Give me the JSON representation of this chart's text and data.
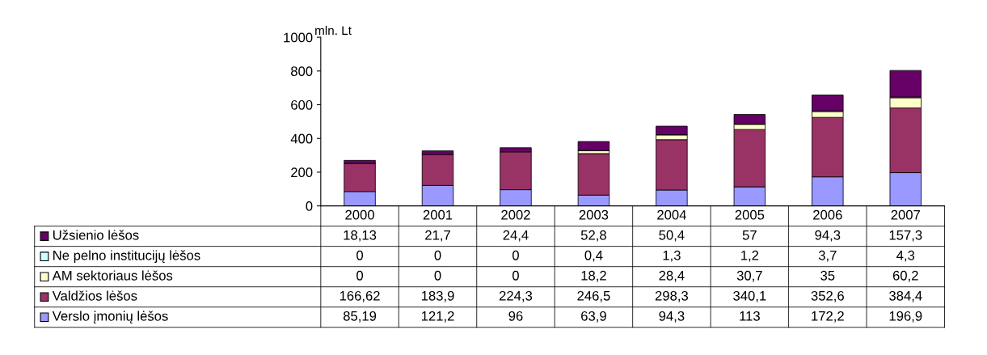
{
  "chart_data": {
    "type": "bar",
    "stacked": true,
    "ylabel": "mln. Lt",
    "categories": [
      "2000",
      "2001",
      "2002",
      "2003",
      "2004",
      "2005",
      "2006",
      "2007"
    ],
    "ylim": [
      0,
      1000
    ],
    "yticks": [
      0,
      200,
      400,
      600,
      800,
      1000
    ],
    "grid": false,
    "legend": "bottom left",
    "series": [
      {
        "name": "Verslo įmonių lėšos",
        "color": "#9999ff",
        "values": [
          85.19,
          121.2,
          96,
          63.9,
          94.3,
          113,
          172.2,
          196.9
        ],
        "value_labels": [
          "85,19",
          "121,2",
          "96",
          "63,9",
          "94,3",
          "113",
          "172,2",
          "196,9"
        ]
      },
      {
        "name": "Valdžios lėšos",
        "color": "#993366",
        "values": [
          166.62,
          183.9,
          224.3,
          246.5,
          298.3,
          340.1,
          352.6,
          384.4
        ],
        "value_labels": [
          "166,62",
          "183,9",
          "224,3",
          "246,5",
          "298,3",
          "340,1",
          "352,6",
          "384,4"
        ]
      },
      {
        "name": "AM sektoriaus lėšos",
        "color": "#ffffcc",
        "values": [
          0,
          0,
          0,
          18.2,
          28.4,
          30.7,
          35,
          60.2
        ],
        "value_labels": [
          "0",
          "0",
          "0",
          "18,2",
          "28,4",
          "30,7",
          "35",
          "60,2"
        ]
      },
      {
        "name": "Ne pelno institucijų lėšos",
        "color": "#ccffff",
        "values": [
          0,
          0,
          0,
          0.4,
          1.3,
          1.2,
          3.7,
          4.3
        ],
        "value_labels": [
          "0",
          "0",
          "0",
          "0,4",
          "1,3",
          "1,2",
          "3,7",
          "4,3"
        ]
      },
      {
        "name": "Užsienio lėšos",
        "color": "#660066",
        "values": [
          18.13,
          21.7,
          24.4,
          52.8,
          50.4,
          57,
          94.3,
          157.3
        ],
        "value_labels": [
          "18,13",
          "21,7",
          "24,4",
          "52,8",
          "50,4",
          "57",
          "94,3",
          "157,3"
        ]
      }
    ]
  }
}
